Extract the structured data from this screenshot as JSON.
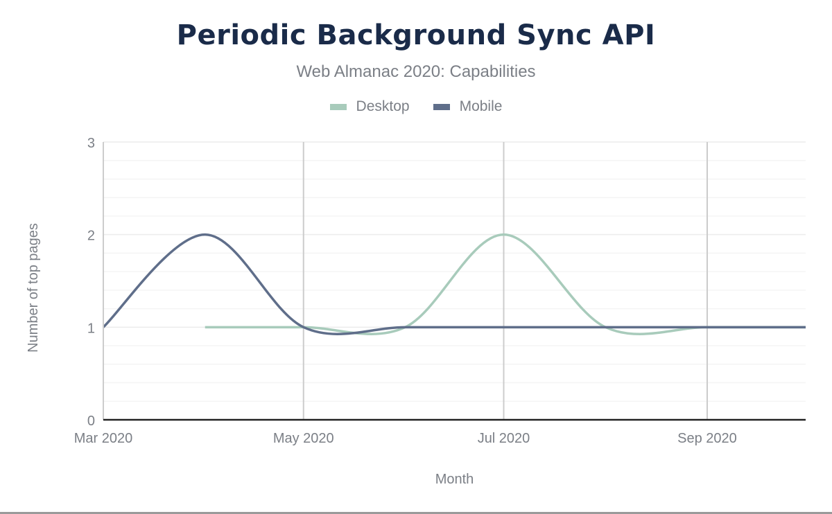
{
  "chart_data": {
    "type": "line",
    "title": "Periodic Background Sync API",
    "subtitle": "Web Almanac 2020: Capabilities",
    "xlabel": "Month",
    "ylabel": "Number of top pages",
    "ylim": [
      0,
      3
    ],
    "yticks": [
      "0",
      "1",
      "2",
      "3"
    ],
    "xticks": [
      "Mar 2020",
      "May 2020",
      "Jul 2020",
      "Sep 2020"
    ],
    "xtick_dates": [
      "2020-03-01",
      "2020-05-01",
      "2020-07-01",
      "2020-09-01"
    ],
    "xlim": [
      "2020-03-01",
      "2020-10-01"
    ],
    "grid": true,
    "legend_position": "top-center",
    "smoothing": "spline",
    "series": [
      {
        "name": "Desktop",
        "color": "#a8cbbb",
        "x": [
          "2020-04-01",
          "2020-05-01",
          "2020-06-01",
          "2020-07-01",
          "2020-08-01",
          "2020-09-01",
          "2020-10-01"
        ],
        "values": [
          1,
          1,
          1,
          2,
          1,
          1,
          1
        ]
      },
      {
        "name": "Mobile",
        "color": "#5f6e8a",
        "x": [
          "2020-03-01",
          "2020-04-01",
          "2020-05-01",
          "2020-06-01",
          "2020-07-01",
          "2020-08-01",
          "2020-09-01",
          "2020-10-01"
        ],
        "values": [
          1,
          2,
          1,
          1,
          1,
          1,
          1,
          1
        ]
      }
    ]
  }
}
